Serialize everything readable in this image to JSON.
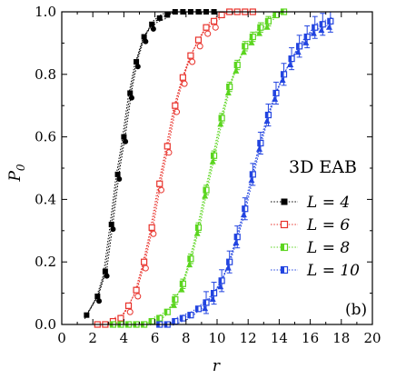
{
  "chart_data": {
    "type": "scatter",
    "annotation": "3D EAB",
    "panel_label": "(b)",
    "xlabel": "r",
    "ylabel_main": "P",
    "ylabel_sub": "0",
    "xlim": [
      0,
      20
    ],
    "ylim": [
      0.0,
      1.0
    ],
    "xticks": [
      "0",
      "2",
      "4",
      "6",
      "8",
      "10",
      "12",
      "14",
      "16",
      "18",
      "20"
    ],
    "yticks": [
      "0.0",
      "0.2",
      "0.4",
      "0.6",
      "0.8",
      "1.0"
    ],
    "grid": false,
    "legend_position": "center-right",
    "legend": [
      {
        "label": "L = 4",
        "color": "#000000",
        "marker": "filled-square"
      },
      {
        "label": "L = 6",
        "color": "#e8312a",
        "marker": "open-square"
      },
      {
        "label": "L = 8",
        "color": "#5bd51f",
        "marker": "half-filled-square"
      },
      {
        "label": "L = 10",
        "color": "#2244e0",
        "marker": "half-filled-square"
      }
    ],
    "series": [
      {
        "name": "L = 4",
        "color": "#000000",
        "x": [
          1.6,
          2.3,
          2.8,
          3.2,
          3.6,
          4.0,
          4.4,
          4.8,
          5.3,
          5.8,
          6.3,
          6.8,
          7.3,
          7.8,
          8.3,
          8.8,
          9.3,
          9.8
        ],
        "y": [
          0.03,
          0.09,
          0.17,
          0.32,
          0.48,
          0.6,
          0.74,
          0.84,
          0.92,
          0.96,
          0.98,
          0.99,
          1.0,
          1.0,
          1.0,
          1.0,
          1.0,
          1.0
        ]
      },
      {
        "name": "L = 6",
        "color": "#e8312a",
        "x": [
          2.3,
          2.8,
          3.3,
          3.8,
          4.3,
          4.8,
          5.3,
          5.8,
          6.3,
          6.8,
          7.3,
          7.8,
          8.3,
          8.8,
          9.3,
          9.8,
          10.3,
          10.8,
          11.3,
          11.8,
          12.3
        ],
        "y": [
          0.0,
          0.0,
          0.01,
          0.02,
          0.06,
          0.11,
          0.2,
          0.31,
          0.45,
          0.57,
          0.7,
          0.79,
          0.86,
          0.91,
          0.95,
          0.97,
          0.99,
          1.0,
          1.0,
          1.0,
          1.0
        ]
      },
      {
        "name": "L = 8",
        "color": "#5bd51f",
        "x": [
          3.3,
          3.8,
          4.3,
          4.8,
          5.3,
          5.8,
          6.3,
          6.8,
          7.3,
          7.8,
          8.3,
          8.8,
          9.3,
          9.8,
          10.3,
          10.8,
          11.3,
          11.8,
          12.3,
          12.8,
          13.3,
          13.8,
          14.3
        ],
        "y": [
          0.0,
          0.0,
          0.0,
          0.0,
          0.0,
          0.01,
          0.02,
          0.04,
          0.08,
          0.13,
          0.21,
          0.31,
          0.43,
          0.54,
          0.66,
          0.76,
          0.83,
          0.89,
          0.92,
          0.95,
          0.97,
          0.99,
          1.0
        ]
      },
      {
        "name": "L = 10",
        "color": "#2244e0",
        "x": [
          6.3,
          6.8,
          7.3,
          7.8,
          8.3,
          8.8,
          9.3,
          9.8,
          10.3,
          10.8,
          11.3,
          11.8,
          12.3,
          12.8,
          13.3,
          13.8,
          14.3,
          14.8,
          15.3,
          15.8,
          16.3,
          16.8,
          17.3
        ],
        "y": [
          0.0,
          0.0,
          0.01,
          0.02,
          0.03,
          0.05,
          0.07,
          0.1,
          0.14,
          0.2,
          0.28,
          0.37,
          0.48,
          0.58,
          0.67,
          0.74,
          0.8,
          0.85,
          0.89,
          0.92,
          0.95,
          0.96,
          0.97
        ]
      }
    ]
  }
}
